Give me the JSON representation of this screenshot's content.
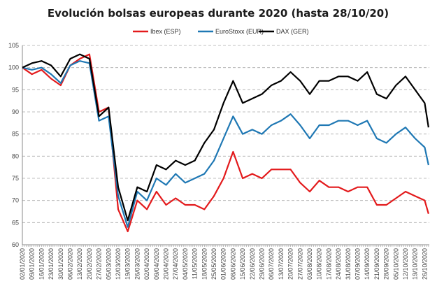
{
  "chart_data": {
    "type": "line",
    "title": "Evolución bolsas europeas durante 2020 (hasta 28/10/20)",
    "xlabel": "",
    "ylabel": "",
    "ylim": [
      60,
      105
    ],
    "yticks": [
      "60",
      "65",
      "70",
      "75",
      "80",
      "85",
      "90",
      "95",
      "100",
      "105"
    ],
    "grid": true,
    "legend_position": "top",
    "x_tick_labels": [
      "02/01/2020",
      "09/01/2020",
      "16/01/2020",
      "23/01/2020",
      "30/01/2020",
      "06/02/2020",
      "13/02/2020",
      "20/02/2020",
      "27/02/2020",
      "05/03/2020",
      "12/03/2020",
      "19/03/2020",
      "26/03/2020",
      "02/04/2020",
      "09/04/2020",
      "20/04/2020",
      "27/04/2020",
      "04/05/2020",
      "11/05/2020",
      "18/05/2020",
      "25/05/2020",
      "01/06/2020",
      "08/06/2020",
      "15/06/2020",
      "22/06/2020",
      "29/06/2020",
      "06/07/2020",
      "13/07/2020",
      "20/07/2020",
      "27/07/2020",
      "03/08/2020",
      "10/08/2020",
      "17/08/2020",
      "24/08/2020",
      "31/08/2020",
      "07/09/2020",
      "14/09/2020",
      "21/09/2020",
      "28/09/2020",
      "05/10/2020",
      "12/10/2020",
      "19/10/2020",
      "26/10/2020"
    ],
    "x": [
      "02/01/2020",
      "09/01/2020",
      "16/01/2020",
      "23/01/2020",
      "30/01/2020",
      "06/02/2020",
      "13/02/2020",
      "20/02/2020",
      "27/02/2020",
      "05/03/2020",
      "12/03/2020",
      "19/03/2020",
      "26/03/2020",
      "02/04/2020",
      "09/04/2020",
      "20/04/2020",
      "27/04/2020",
      "04/05/2020",
      "11/05/2020",
      "18/05/2020",
      "25/05/2020",
      "01/06/2020",
      "08/06/2020",
      "15/06/2020",
      "22/06/2020",
      "29/06/2020",
      "06/07/2020",
      "13/07/2020",
      "20/07/2020",
      "27/07/2020",
      "03/08/2020",
      "10/08/2020",
      "17/08/2020",
      "24/08/2020",
      "31/08/2020",
      "07/09/2020",
      "14/09/2020",
      "21/09/2020",
      "28/09/2020",
      "05/10/2020",
      "12/10/2020",
      "19/10/2020",
      "26/10/2020",
      "28/10/2020"
    ],
    "series": [
      {
        "name": "Ibex (ESP)",
        "color": "#e31a1c",
        "values": [
          100,
          98.5,
          99.5,
          97.5,
          96,
          100.5,
          102,
          103,
          90,
          91,
          68,
          63,
          70,
          68,
          72,
          69,
          70.5,
          69,
          69,
          68,
          71,
          75,
          81,
          75,
          76,
          75,
          77,
          77,
          77,
          74,
          72,
          74.5,
          73,
          73,
          72,
          73,
          73,
          69,
          69,
          70.5,
          72,
          71,
          70,
          67
        ]
      },
      {
        "name": "EuroStoxx (EUR)",
        "color": "#1f78b4",
        "values": [
          100,
          99.5,
          100,
          98.5,
          96.5,
          100.5,
          101.5,
          101,
          88,
          89,
          71,
          64,
          72,
          70,
          75,
          73.5,
          76,
          74,
          75,
          76,
          79,
          84,
          89,
          85,
          86,
          85,
          87,
          88,
          89.5,
          87,
          84,
          87,
          87,
          88,
          88,
          87,
          88,
          84,
          83,
          85,
          86.5,
          84,
          82,
          78
        ]
      },
      {
        "name": "DAX (GER)",
        "color": "#000000",
        "values": [
          100,
          101,
          101.5,
          100.5,
          98,
          102,
          103,
          102,
          89,
          91,
          73,
          65.5,
          73,
          72,
          78,
          77,
          79,
          78,
          79,
          83,
          86,
          92,
          97,
          92,
          93,
          94,
          96,
          97,
          99,
          97,
          94,
          97,
          97,
          98,
          98,
          97,
          99,
          94,
          93,
          96,
          98,
          95,
          92,
          86.5
        ]
      }
    ]
  }
}
